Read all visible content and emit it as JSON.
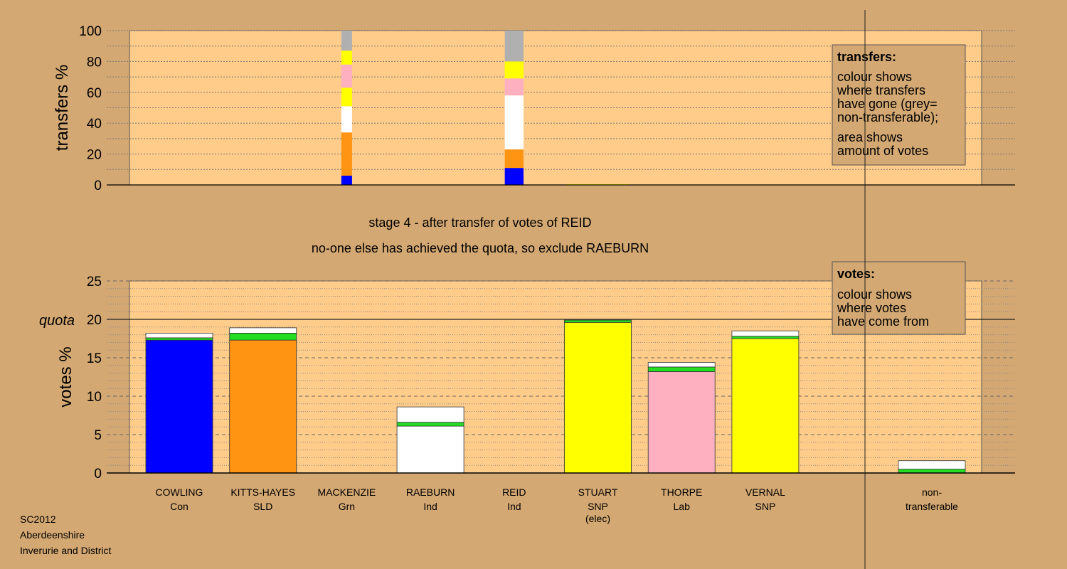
{
  "colors": {
    "page_bg": "#d4a872",
    "plot_bg": "#ffcc8a",
    "Con": "#0000ff",
    "SLD": "#ff9412",
    "Grn": "#22dd22",
    "Ind": "#ffffff",
    "SNP": "#ffff00",
    "Lab": "#ffb0c0",
    "nontransferable": "#b0b0b0",
    "quota_line": "#222222"
  },
  "stage": {
    "line1": "stage 4 - after transfer of votes of REID",
    "line2": "no-one else has achieved the quota, so exclude RAEBURN"
  },
  "footer": [
    "SC2012",
    "Aberdeenshire",
    "Inverurie and District"
  ],
  "legend_transfers": {
    "title": "transfers:",
    "lines1": [
      "colour shows",
      "where transfers",
      "have gone (grey=",
      "non-transferable);"
    ],
    "lines2": [
      "area shows",
      "amount of votes"
    ]
  },
  "legend_votes": {
    "title": "votes:",
    "lines1": [
      "colour shows",
      "where votes",
      "have come from"
    ]
  },
  "chart_data": [
    {
      "type": "bar",
      "stacked": true,
      "ylabel": "transfers %",
      "ylim": [
        0,
        100
      ],
      "yticks": [
        0,
        20,
        40,
        60,
        80,
        100
      ],
      "grid": true,
      "categories": [
        "COWLING",
        "KITTS-HAYES",
        "MACKENZIE",
        "RAEBURN",
        "REID",
        "STUART",
        "THORPE",
        "VERNAL"
      ],
      "note": "transfer columns; narrow widths show amount of votes",
      "columns": [
        {
          "category": "MACKENZIE",
          "width": 0.16,
          "segments": [
            {
              "party": "Con",
              "value": 6
            },
            {
              "party": "SLD",
              "value": 28
            },
            {
              "party": "Ind",
              "value": 17
            },
            {
              "party": "SNP",
              "value": 12
            },
            {
              "party": "Lab",
              "value": 15
            },
            {
              "party": "SNP",
              "value": 9
            },
            {
              "party": "nontransferable",
              "value": 13
            }
          ]
        },
        {
          "category": "REID",
          "width": 0.28,
          "segments": [
            {
              "party": "Con",
              "value": 11
            },
            {
              "party": "SLD",
              "value": 12
            },
            {
              "party": "Ind",
              "value": 35
            },
            {
              "party": "Lab",
              "value": 11
            },
            {
              "party": "SNP",
              "value": 11
            },
            {
              "party": "nontransferable",
              "value": 20
            }
          ]
        },
        {
          "category": "STUART",
          "width": 0.95,
          "segments": [
            {
              "party": "SNP",
              "value": 0.5
            }
          ]
        }
      ]
    },
    {
      "type": "bar",
      "stacked": true,
      "ylabel": "votes %",
      "ylim": [
        0,
        25
      ],
      "yticks": [
        0,
        5,
        10,
        15,
        20,
        25
      ],
      "quota": 20,
      "quota_label": "quota",
      "grid": true,
      "candidates": [
        {
          "name": "COWLING",
          "party": "Con",
          "extra": "",
          "segments": [
            {
              "party": "Con",
              "value": 17.3
            },
            {
              "party": "Grn",
              "value": 0.3
            },
            {
              "party": "Ind",
              "value": 0.6
            }
          ]
        },
        {
          "name": "KITTS-HAYES",
          "party": "SLD",
          "extra": "",
          "segments": [
            {
              "party": "SLD",
              "value": 17.3
            },
            {
              "party": "Grn",
              "value": 0.9
            },
            {
              "party": "Ind",
              "value": 0.7
            }
          ]
        },
        {
          "name": "MACKENZIE",
          "party": "Grn",
          "extra": "",
          "segments": []
        },
        {
          "name": "RAEBURN",
          "party": "Ind",
          "extra": "",
          "segments": [
            {
              "party": "Ind",
              "value": 6.1
            },
            {
              "party": "Grn",
              "value": 0.5
            },
            {
              "party": "Ind",
              "value": 2.0
            }
          ]
        },
        {
          "name": "REID",
          "party": "Ind",
          "extra": "",
          "segments": []
        },
        {
          "name": "STUART",
          "party": "SNP",
          "extra": "(elec)",
          "segments": [
            {
              "party": "SNP",
              "value": 19.6
            },
            {
              "party": "Grn",
              "value": 0.3
            }
          ]
        },
        {
          "name": "THORPE",
          "party": "Lab",
          "extra": "",
          "segments": [
            {
              "party": "Lab",
              "value": 13.2
            },
            {
              "party": "Grn",
              "value": 0.6
            },
            {
              "party": "Ind",
              "value": 0.6
            }
          ]
        },
        {
          "name": "VERNAL",
          "party": "SNP",
          "extra": "",
          "segments": [
            {
              "party": "SNP",
              "value": 17.5
            },
            {
              "party": "Grn",
              "value": 0.3
            },
            {
              "party": "Ind",
              "value": 0.7
            }
          ]
        }
      ],
      "nontransferable": {
        "label1": "non-",
        "label2": "transferable",
        "segments": [
          {
            "party": "Grn",
            "value": 0.5
          },
          {
            "party": "Ind",
            "value": 1.1
          }
        ]
      }
    }
  ]
}
